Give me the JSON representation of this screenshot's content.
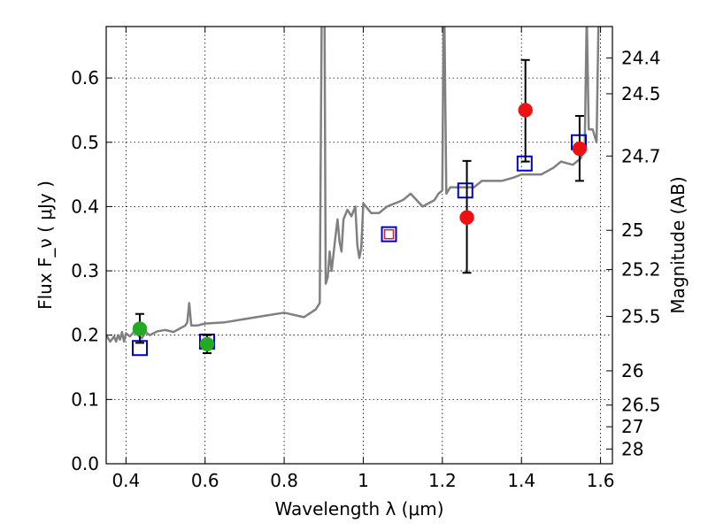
{
  "chart_data": {
    "type": "scatter",
    "title": "",
    "xlabel": "Wavelength  λ (μm)",
    "ylabel": "Flux  F_ν  ( μJy )",
    "ylabel_right": "Magnitude (AB)",
    "xlim": [
      0.35,
      1.63
    ],
    "ylim": [
      0.0,
      0.68
    ],
    "grid": true,
    "x_ticks": [
      0.4,
      0.6,
      0.8,
      1.0,
      1.2,
      1.4,
      1.6
    ],
    "x_tick_labels": [
      "0.4",
      "0.6",
      "0.8",
      "1",
      "1.2",
      "1.4",
      "1.6"
    ],
    "y_ticks": [
      0.0,
      0.1,
      0.2,
      0.3,
      0.4,
      0.5,
      0.6
    ],
    "y_tick_labels": [
      "0.0",
      "0.1",
      "0.2",
      "0.3",
      "0.4",
      "0.5",
      "0.6"
    ],
    "right_ticks": [
      {
        "mag": 24.4,
        "label": "24.4"
      },
      {
        "mag": 24.5,
        "label": "24.5"
      },
      {
        "mag": 24.7,
        "label": "24.7"
      },
      {
        "mag": 25.0,
        "label": "25"
      },
      {
        "mag": 25.2,
        "label": "25.2"
      },
      {
        "mag": 25.5,
        "label": "25.5"
      },
      {
        "mag": 26.0,
        "label": "26"
      },
      {
        "mag": 26.5,
        "label": "26.5"
      },
      {
        "mag": 27.0,
        "label": "27"
      },
      {
        "mag": 28.0,
        "label": "28"
      }
    ],
    "colors": {
      "sed": "#808080",
      "model_box": "#0000cc",
      "model_box_alt": "#cc2233",
      "green": "#22aa22",
      "red": "#ee1111",
      "error": "#000000"
    },
    "series": [
      {
        "kind": "line",
        "x": [
          0.35,
          0.36,
          0.37,
          0.375,
          0.38,
          0.385,
          0.39,
          0.395,
          0.4,
          0.41,
          0.42,
          0.43,
          0.44,
          0.45,
          0.46,
          0.47,
          0.48,
          0.5,
          0.52,
          0.55,
          0.555,
          0.56,
          0.565,
          0.58,
          0.6,
          0.65,
          0.7,
          0.75,
          0.8,
          0.85,
          0.88,
          0.89,
          0.895,
          0.898,
          0.9,
          0.902,
          0.905,
          0.91,
          0.915,
          0.92,
          0.93,
          0.935,
          0.94,
          0.945,
          0.95,
          0.96,
          0.97,
          0.98,
          0.985,
          0.99,
          0.995,
          1.0,
          1.02,
          1.04,
          1.06,
          1.08,
          1.1,
          1.12,
          1.15,
          1.18,
          1.19,
          1.2,
          1.203,
          1.205,
          1.21,
          1.22,
          1.25,
          1.28,
          1.3,
          1.35,
          1.38,
          1.4,
          1.45,
          1.48,
          1.5,
          1.53,
          1.55,
          1.56,
          1.565,
          1.57,
          1.58,
          1.59,
          1.595,
          1.6,
          1.61,
          1.62,
          1.63
        ],
        "y": [
          0.2,
          0.19,
          0.198,
          0.19,
          0.2,
          0.193,
          0.205,
          0.19,
          0.203,
          0.198,
          0.205,
          0.2,
          0.195,
          0.205,
          0.2,
          0.203,
          0.206,
          0.208,
          0.205,
          0.215,
          0.22,
          0.25,
          0.215,
          0.215,
          0.218,
          0.22,
          0.225,
          0.23,
          0.235,
          0.228,
          0.24,
          0.25,
          0.7,
          0.7,
          0.7,
          0.7,
          0.28,
          0.29,
          0.33,
          0.3,
          0.355,
          0.38,
          0.345,
          0.33,
          0.38,
          0.395,
          0.385,
          0.4,
          0.34,
          0.32,
          0.335,
          0.405,
          0.39,
          0.39,
          0.4,
          0.405,
          0.41,
          0.42,
          0.4,
          0.41,
          0.42,
          0.425,
          0.7,
          0.7,
          0.42,
          0.43,
          0.43,
          0.43,
          0.44,
          0.44,
          0.445,
          0.45,
          0.45,
          0.46,
          0.47,
          0.465,
          0.475,
          0.49,
          0.7,
          0.52,
          0.52,
          0.5,
          0.7,
          0.7,
          0.7,
          0.7,
          0.7
        ]
      },
      {
        "kind": "open-square",
        "color_key": "model_box",
        "x": [
          0.435,
          0.605,
          1.258,
          1.408,
          1.545
        ],
        "y": [
          0.18,
          0.19,
          0.425,
          0.467,
          0.5
        ]
      },
      {
        "kind": "open-square-double",
        "color_key": "model_box_alt",
        "x": [
          1.065
        ],
        "y": [
          0.357
        ]
      },
      {
        "kind": "point",
        "color_key": "green",
        "x": [
          0.435,
          0.605
        ],
        "y": [
          0.21,
          0.186
        ],
        "yerr_low": [
          0.188,
          0.172
        ],
        "yerr_high": [
          0.233,
          0.2
        ]
      },
      {
        "kind": "point",
        "color_key": "red",
        "x": [
          1.262,
          1.41,
          1.547
        ],
        "y": [
          0.383,
          0.55,
          0.49
        ],
        "yerr_low": [
          0.297,
          0.47,
          0.44
        ],
        "yerr_high": [
          0.471,
          0.628,
          0.541
        ]
      }
    ]
  }
}
